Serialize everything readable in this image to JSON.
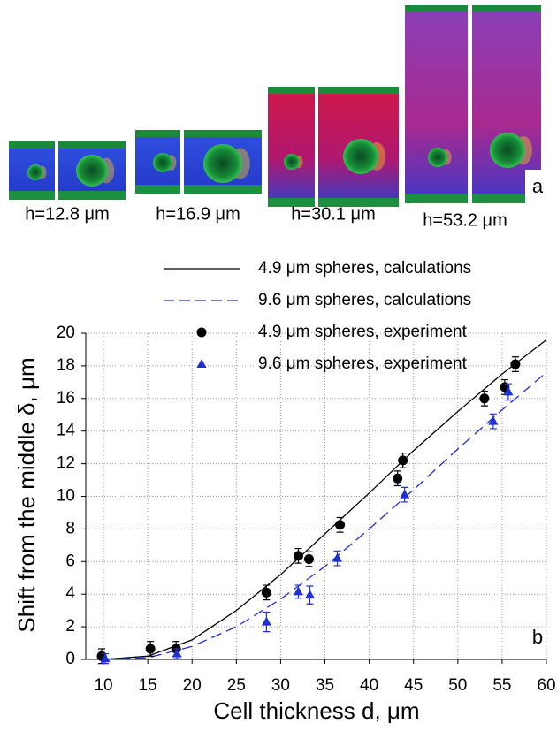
{
  "images": {
    "panel_label": "a",
    "captions": [
      "h=12.8 μm",
      "h=16.9 μm",
      "h=30.1 μm",
      "h=53.2 μm"
    ]
  },
  "chart_data": {
    "type": "scatter",
    "panel_label": "b",
    "x_label": "Cell thickness d, μm",
    "y_label": "Shift from the middle δ, μm",
    "xlim": [
      8,
      60
    ],
    "ylim": [
      0,
      20
    ],
    "xticks": [
      10,
      15,
      20,
      25,
      30,
      35,
      40,
      45,
      50,
      55,
      60
    ],
    "yticks": [
      0,
      2,
      4,
      6,
      8,
      10,
      12,
      14,
      16,
      18,
      20
    ],
    "grid": true,
    "legend": "top",
    "series": [
      {
        "name": "4.9 μm spheres, calculations",
        "color": "#000000",
        "style": "solid",
        "x": [
          10,
          15,
          20,
          25,
          30,
          35,
          40,
          45,
          50,
          55,
          60
        ],
        "values": [
          0,
          0.2,
          1.2,
          3.0,
          5.2,
          7.7,
          10.2,
          12.8,
          15.2,
          17.5,
          19.6
        ]
      },
      {
        "name": "9.6 μm spheres, calculations",
        "color": "#1f2fd0",
        "style": "dashed",
        "x": [
          10,
          15,
          20,
          25,
          30,
          35,
          40,
          45,
          50,
          55,
          60
        ],
        "values": [
          0,
          0.1,
          0.8,
          2.0,
          3.7,
          5.7,
          8.0,
          10.4,
          12.9,
          15.3,
          17.6
        ]
      },
      {
        "name": "4.9 μm spheres, experiment",
        "color": "#000000",
        "marker": "circle",
        "x": [
          9.8,
          15.3,
          18.2,
          28.4,
          32.0,
          33.2,
          36.7,
          43.2,
          43.8,
          53.0,
          55.3,
          56.5
        ],
        "values": [
          0.2,
          0.65,
          0.65,
          4.1,
          6.35,
          6.15,
          8.25,
          11.1,
          12.2,
          16.0,
          16.7,
          18.1
        ],
        "errors": [
          0.45,
          0.45,
          0.45,
          0.45,
          0.45,
          0.45,
          0.45,
          0.45,
          0.45,
          0.45,
          0.45,
          0.45
        ]
      },
      {
        "name": "9.6 μm spheres, experiment",
        "color": "#1f2fd0",
        "marker": "triangle",
        "x": [
          10.2,
          18.3,
          28.4,
          32.0,
          33.3,
          36.4,
          44.0,
          54.0,
          55.7
        ],
        "values": [
          0.05,
          0.35,
          2.3,
          4.15,
          3.95,
          6.2,
          10.1,
          14.6,
          16.4
        ],
        "errors": [
          0.3,
          0.3,
          0.6,
          0.4,
          0.55,
          0.45,
          0.45,
          0.45,
          0.5
        ]
      }
    ]
  }
}
